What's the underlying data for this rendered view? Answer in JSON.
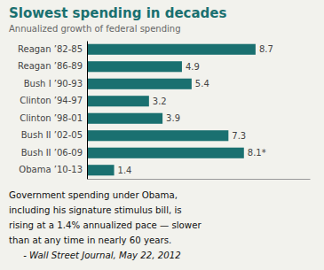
{
  "chart_data": {
    "type": "bar",
    "orientation": "horizontal",
    "title": "Slowest spending in decades",
    "subtitle": "Annualized growth of federal spending",
    "categories": [
      "Reagan ’82-85",
      "Reagan ’86-89",
      "Bush I ’90-93",
      "Clinton ’94-97",
      "Clinton ’98-01",
      "Bush II ’02-05",
      "Bush II ’06-09",
      "Obama ’10-13"
    ],
    "values": [
      8.7,
      4.9,
      5.4,
      3.2,
      3.9,
      7.3,
      8.1,
      1.4
    ],
    "value_labels": [
      "8.7",
      "4.9",
      "5.4",
      "3.2",
      "3.9",
      "7.3",
      "8.1*",
      "1.4"
    ],
    "data_labels": true,
    "color": "#1a7070",
    "xlim": [
      0,
      11.5
    ],
    "tick_labels": "y",
    "annotations": [
      "Government spending under Obama,",
      "including his signature stimulus bill, is",
      "rising at a 1.4% annualized pace — slower",
      "than at any time in nearly 60 years.",
      "     - Wall Street Journal, May 22, 2012"
    ]
  }
}
